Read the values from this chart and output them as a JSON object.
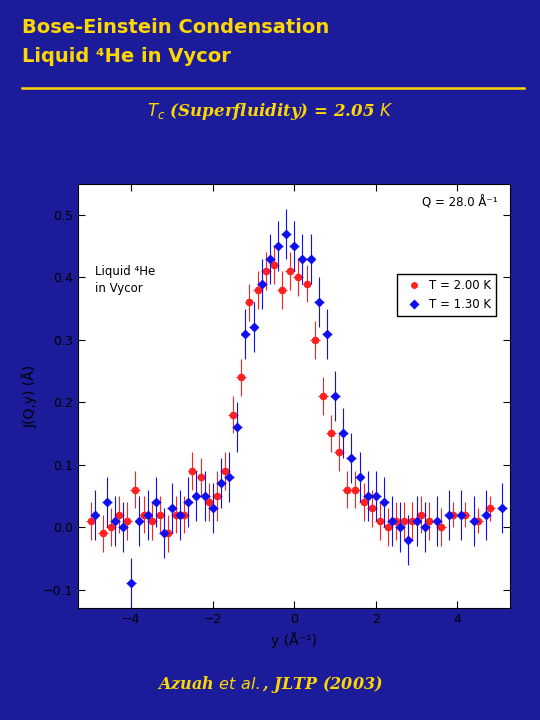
{
  "bg_color": "#1c1c9a",
  "plot_bg_color": "#ffffff",
  "title_line1": "Bose-Einstein Condensation",
  "title_line2": "Liquid ⁴He in Vycor",
  "title_color": "#FFD700",
  "subtitle_color": "#FFD700",
  "xlabel": "y (Å⁻¹)",
  "ylabel": "J(Q,y) (Å)",
  "xlim": [
    -5.3,
    5.3
  ],
  "ylim": [
    -0.13,
    0.55
  ],
  "xticks": [
    -4,
    -2,
    0,
    2,
    4
  ],
  "yticks": [
    -0.1,
    0.0,
    0.1,
    0.2,
    0.3,
    0.4,
    0.5
  ],
  "annotation_inset": "Liquid ⁴He\nin Vycor",
  "annotation_q": "Q = 28.0 Å⁻¹",
  "legend_t1": "T = 2.00 K",
  "legend_t2": "T = 1.30 K",
  "footer_color": "#FFD700",
  "color_red": "#FF2020",
  "color_blue": "#1010EE",
  "separator_color": "#FFD700",
  "red_x": [
    -5.0,
    -4.7,
    -4.5,
    -4.3,
    -4.1,
    -3.9,
    -3.7,
    -3.5,
    -3.3,
    -3.1,
    -2.9,
    -2.7,
    -2.5,
    -2.3,
    -2.1,
    -1.9,
    -1.7,
    -1.5,
    -1.3,
    -1.1,
    -0.9,
    -0.7,
    -0.5,
    -0.3,
    -0.1,
    0.1,
    0.3,
    0.5,
    0.7,
    0.9,
    1.1,
    1.3,
    1.5,
    1.7,
    1.9,
    2.1,
    2.3,
    2.5,
    2.7,
    2.9,
    3.1,
    3.3,
    3.6,
    3.9,
    4.2,
    4.5,
    4.8
  ],
  "red_y": [
    0.01,
    -0.01,
    0.0,
    0.02,
    0.01,
    0.06,
    0.02,
    0.01,
    0.02,
    -0.01,
    0.02,
    0.02,
    0.09,
    0.08,
    0.04,
    0.05,
    0.09,
    0.18,
    0.24,
    0.36,
    0.38,
    0.41,
    0.42,
    0.38,
    0.41,
    0.4,
    0.39,
    0.3,
    0.21,
    0.15,
    0.12,
    0.06,
    0.06,
    0.04,
    0.03,
    0.01,
    0.0,
    0.01,
    0.01,
    0.01,
    0.02,
    0.01,
    0.0,
    0.02,
    0.02,
    0.01,
    0.03
  ],
  "red_yerr": [
    0.03,
    0.03,
    0.03,
    0.03,
    0.03,
    0.03,
    0.03,
    0.03,
    0.03,
    0.03,
    0.03,
    0.03,
    0.03,
    0.03,
    0.03,
    0.04,
    0.03,
    0.03,
    0.03,
    0.03,
    0.03,
    0.03,
    0.03,
    0.03,
    0.03,
    0.03,
    0.03,
    0.03,
    0.03,
    0.03,
    0.03,
    0.03,
    0.03,
    0.03,
    0.03,
    0.03,
    0.03,
    0.03,
    0.03,
    0.03,
    0.03,
    0.03,
    0.03,
    0.02,
    0.02,
    0.02,
    0.02
  ],
  "red_xerr": [
    0.12,
    0.12,
    0.12,
    0.12,
    0.12,
    0.12,
    0.12,
    0.12,
    0.12,
    0.12,
    0.12,
    0.12,
    0.12,
    0.12,
    0.12,
    0.12,
    0.12,
    0.12,
    0.12,
    0.12,
    0.12,
    0.12,
    0.12,
    0.12,
    0.12,
    0.12,
    0.12,
    0.12,
    0.12,
    0.12,
    0.12,
    0.12,
    0.12,
    0.12,
    0.12,
    0.12,
    0.12,
    0.12,
    0.12,
    0.12,
    0.12,
    0.12,
    0.12,
    0.12,
    0.12,
    0.12,
    0.12
  ],
  "blue_x": [
    -4.9,
    -4.6,
    -4.4,
    -4.2,
    -4.0,
    -3.8,
    -3.6,
    -3.4,
    -3.2,
    -3.0,
    -2.8,
    -2.6,
    -2.4,
    -2.2,
    -2.0,
    -1.8,
    -1.6,
    -1.4,
    -1.2,
    -1.0,
    -0.8,
    -0.6,
    -0.4,
    -0.2,
    0.0,
    0.2,
    0.4,
    0.6,
    0.8,
    1.0,
    1.2,
    1.4,
    1.6,
    1.8,
    2.0,
    2.2,
    2.4,
    2.6,
    2.8,
    3.0,
    3.2,
    3.5,
    3.8,
    4.1,
    4.4,
    4.7,
    5.1
  ],
  "blue_y": [
    0.02,
    0.04,
    0.01,
    0.0,
    -0.09,
    0.01,
    0.02,
    0.04,
    -0.01,
    0.03,
    0.02,
    0.04,
    0.05,
    0.05,
    0.03,
    0.07,
    0.08,
    0.16,
    0.31,
    0.32,
    0.39,
    0.43,
    0.45,
    0.47,
    0.45,
    0.43,
    0.43,
    0.36,
    0.31,
    0.21,
    0.15,
    0.11,
    0.08,
    0.05,
    0.05,
    0.04,
    0.01,
    0.0,
    -0.02,
    0.01,
    0.0,
    0.01,
    0.02,
    0.02,
    0.01,
    0.02,
    0.03
  ],
  "blue_yerr": [
    0.04,
    0.04,
    0.04,
    0.04,
    0.04,
    0.04,
    0.04,
    0.04,
    0.04,
    0.04,
    0.04,
    0.04,
    0.04,
    0.04,
    0.04,
    0.04,
    0.04,
    0.04,
    0.04,
    0.04,
    0.04,
    0.04,
    0.04,
    0.04,
    0.04,
    0.04,
    0.04,
    0.04,
    0.04,
    0.04,
    0.04,
    0.04,
    0.04,
    0.04,
    0.04,
    0.04,
    0.04,
    0.04,
    0.04,
    0.04,
    0.04,
    0.04,
    0.04,
    0.04,
    0.04,
    0.04,
    0.04
  ],
  "blue_xerr": [
    0.12,
    0.12,
    0.12,
    0.12,
    0.12,
    0.12,
    0.12,
    0.12,
    0.12,
    0.12,
    0.12,
    0.12,
    0.12,
    0.12,
    0.12,
    0.12,
    0.12,
    0.12,
    0.12,
    0.12,
    0.12,
    0.12,
    0.12,
    0.12,
    0.12,
    0.12,
    0.12,
    0.12,
    0.12,
    0.12,
    0.12,
    0.12,
    0.12,
    0.12,
    0.12,
    0.12,
    0.12,
    0.12,
    0.12,
    0.12,
    0.12,
    0.12,
    0.12,
    0.12,
    0.12,
    0.12,
    0.12
  ]
}
